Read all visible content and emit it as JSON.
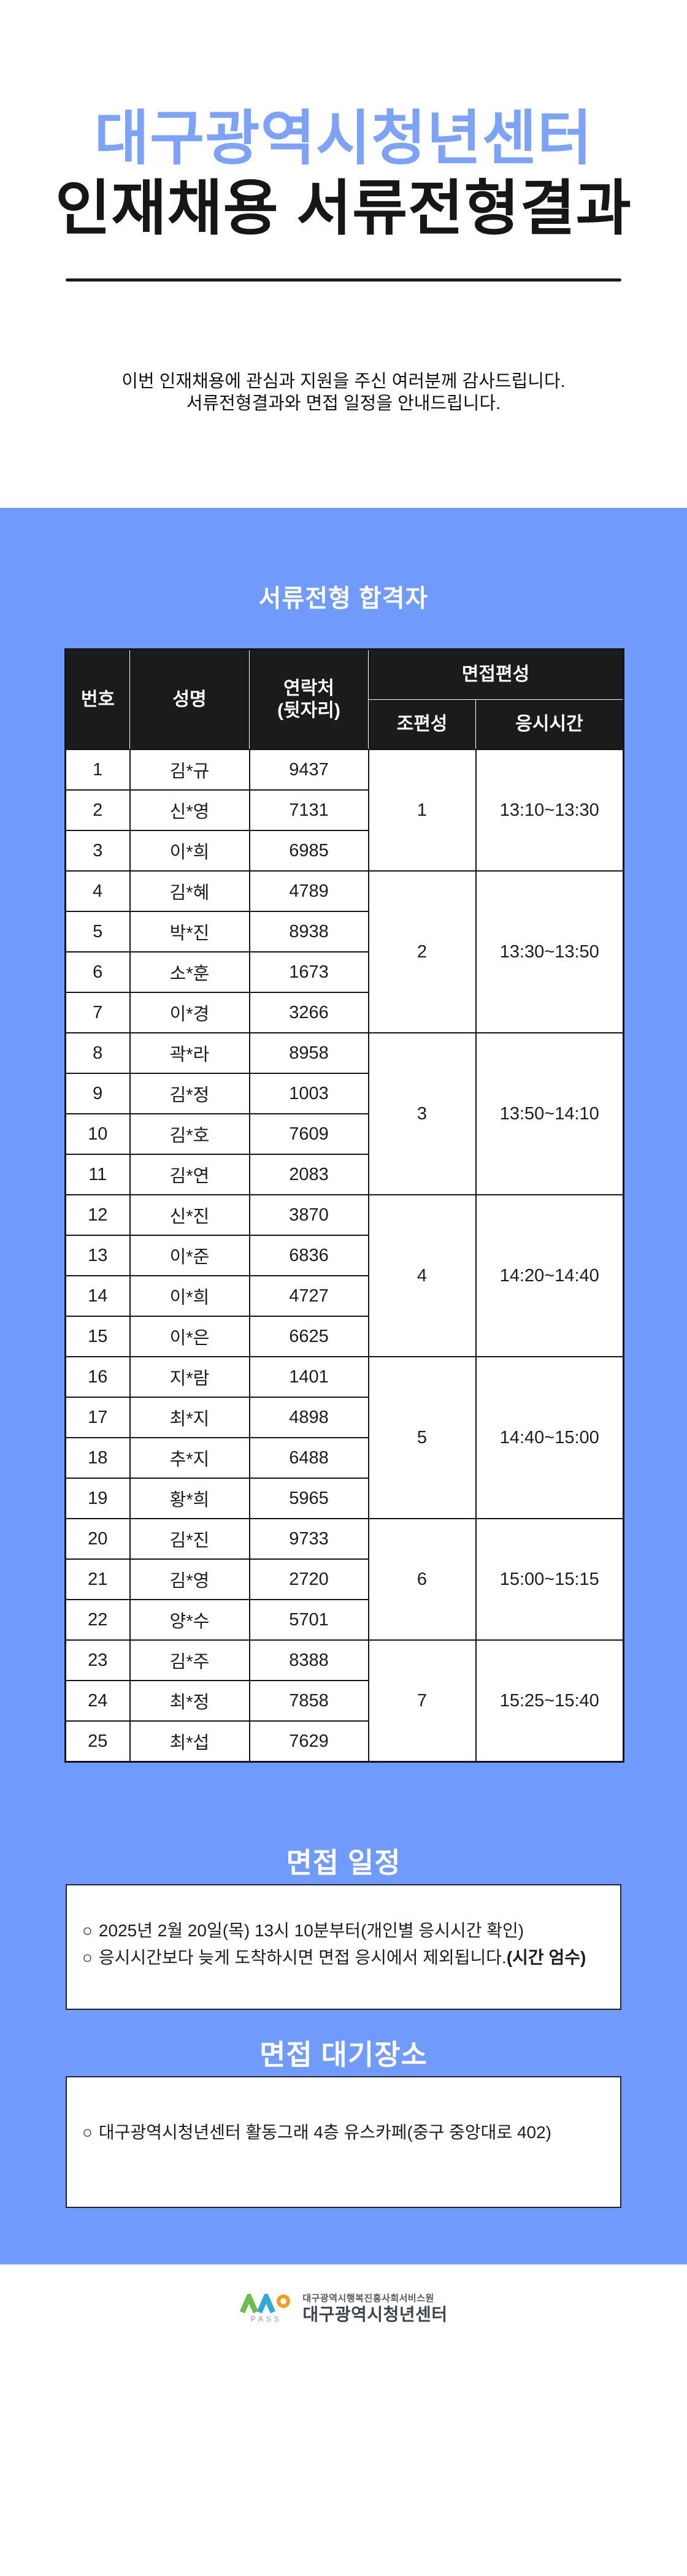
{
  "header": {
    "title_line1": "대구광역시청년센터",
    "title_line2": "인재채용 서류전형결과",
    "intro_line1": "이번 인재채용에 관심과 지원을 주신 여러분께 감사드립니다.",
    "intro_line2": "서류전형결과와 면접 일정을 안내드립니다."
  },
  "colors": {
    "section_blue": "#709bfc",
    "title_blue": "#7ca3f8",
    "table_header_bg": "#1b1b1b",
    "logo_green": "#6cbf4a",
    "logo_teal": "#2fa9d9",
    "logo_orange": "#f59d20"
  },
  "pass_list": {
    "section_title": "서류전형 합격자",
    "col_no": "번호",
    "col_name": "성명",
    "col_contact_line1": "연락처",
    "col_contact_line2": "(뒷자리)",
    "col_interview": "면접편성",
    "col_group": "조편성",
    "col_time": "응시시간",
    "rows": [
      {
        "no": "1",
        "name": "김*규",
        "contact": "9437"
      },
      {
        "no": "2",
        "name": "신*영",
        "contact": "7131"
      },
      {
        "no": "3",
        "name": "이*희",
        "contact": "6985"
      },
      {
        "no": "4",
        "name": "김*혜",
        "contact": "4789"
      },
      {
        "no": "5",
        "name": "박*진",
        "contact": "8938"
      },
      {
        "no": "6",
        "name": "소*훈",
        "contact": "1673"
      },
      {
        "no": "7",
        "name": "이*경",
        "contact": "3266"
      },
      {
        "no": "8",
        "name": "곽*라",
        "contact": "8958"
      },
      {
        "no": "9",
        "name": "김*정",
        "contact": "1003"
      },
      {
        "no": "10",
        "name": "김*호",
        "contact": "7609"
      },
      {
        "no": "11",
        "name": "김*연",
        "contact": "2083"
      },
      {
        "no": "12",
        "name": "신*진",
        "contact": "3870"
      },
      {
        "no": "13",
        "name": "이*준",
        "contact": "6836"
      },
      {
        "no": "14",
        "name": "이*희",
        "contact": "4727"
      },
      {
        "no": "15",
        "name": "이*은",
        "contact": "6625"
      },
      {
        "no": "16",
        "name": "지*람",
        "contact": "1401"
      },
      {
        "no": "17",
        "name": "최*지",
        "contact": "4898"
      },
      {
        "no": "18",
        "name": "추*지",
        "contact": "6488"
      },
      {
        "no": "19",
        "name": "황*희",
        "contact": "5965"
      },
      {
        "no": "20",
        "name": "김*진",
        "contact": "9733"
      },
      {
        "no": "21",
        "name": "김*영",
        "contact": "2720"
      },
      {
        "no": "22",
        "name": "양*수",
        "contact": "5701"
      },
      {
        "no": "23",
        "name": "김*주",
        "contact": "8388"
      },
      {
        "no": "24",
        "name": "최*정",
        "contact": "7858"
      },
      {
        "no": "25",
        "name": "최*섭",
        "contact": "7629"
      }
    ],
    "groups": [
      {
        "group": "1",
        "time": "13:10~13:30",
        "start_no": "1",
        "rowspan": 3
      },
      {
        "group": "2",
        "time": "13:30~13:50",
        "start_no": "4",
        "rowspan": 4
      },
      {
        "group": "3",
        "time": "13:50~14:10",
        "start_no": "8",
        "rowspan": 4
      },
      {
        "group": "4",
        "time": "14:20~14:40",
        "start_no": "12",
        "rowspan": 4
      },
      {
        "group": "5",
        "time": "14:40~15:00",
        "start_no": "16",
        "rowspan": 4
      },
      {
        "group": "6",
        "time": "15:00~15:15",
        "start_no": "20",
        "rowspan": 3
      },
      {
        "group": "7",
        "time": "15:25~15:40",
        "start_no": "23",
        "rowspan": 3
      }
    ]
  },
  "schedule": {
    "title": "면접 일정",
    "bullets": [
      {
        "marker": "○",
        "text": "2025년 2월 20일(목) 13시 10분부터(개인별 응시시간 확인)",
        "bold": ""
      },
      {
        "marker": "○",
        "text": "응시시간보다 늦게 도착하시면 면접 응시에서 제외됩니다.",
        "bold": "(시간 엄수)"
      }
    ]
  },
  "waiting_room": {
    "title": "면접 대기장소",
    "bullets": [
      {
        "marker": "○",
        "text": "대구광역시청년센터 활동그래 4층 유스카페(중구 중앙대로 402)",
        "bold": ""
      }
    ]
  },
  "footer": {
    "logo_pass": "PASS",
    "org_line1": "대구광역시행복진흥사회서비스원",
    "org_line2": "대구광역시청년센터"
  }
}
